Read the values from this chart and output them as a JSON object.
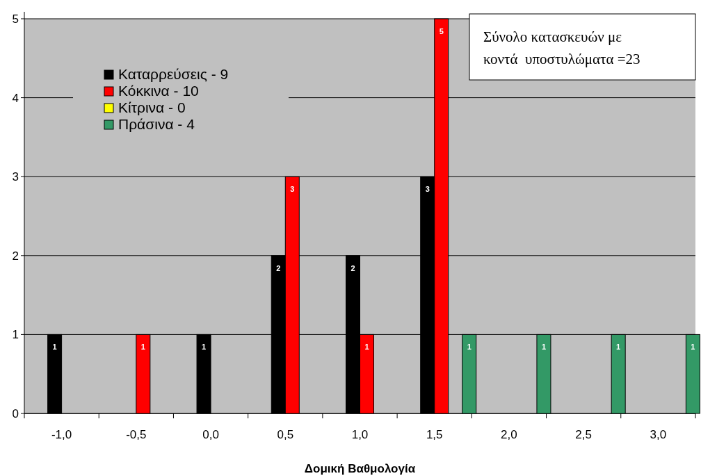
{
  "chart_data": {
    "type": "bar",
    "xlabel": "Δομική Βαθμολογία",
    "categories": [
      "-1,0",
      "-0,5",
      "0,0",
      "0,5",
      "1,0",
      "1,5",
      "2,0",
      "2,5",
      "3,0"
    ],
    "series": [
      {
        "name": "Καταρρεύσεις - 9",
        "color": "#000000",
        "values": [
          1,
          null,
          1,
          2,
          2,
          3,
          null,
          null,
          null
        ]
      },
      {
        "name": "Κόκκινα - 10",
        "color": "#ff0000",
        "values": [
          null,
          1,
          null,
          3,
          1,
          5,
          null,
          null,
          null
        ]
      },
      {
        "name": "Κίτρινα - 0",
        "color": "#ffff00",
        "values": [
          null,
          null,
          null,
          null,
          null,
          null,
          null,
          null,
          null
        ]
      },
      {
        "name": "Πράσινα - 4",
        "color": "#339966",
        "values": [
          null,
          null,
          null,
          null,
          null,
          1,
          1,
          1,
          1
        ]
      }
    ],
    "ylim": [
      0,
      5
    ],
    "yticks": [
      0,
      1,
      2,
      3,
      4,
      5
    ],
    "grid": "y",
    "legend": "top left",
    "data_labels": true,
    "annotations": [
      "Σύνολο κατασκευών με\nκοντά  υποστυλώματα =23"
    ]
  }
}
